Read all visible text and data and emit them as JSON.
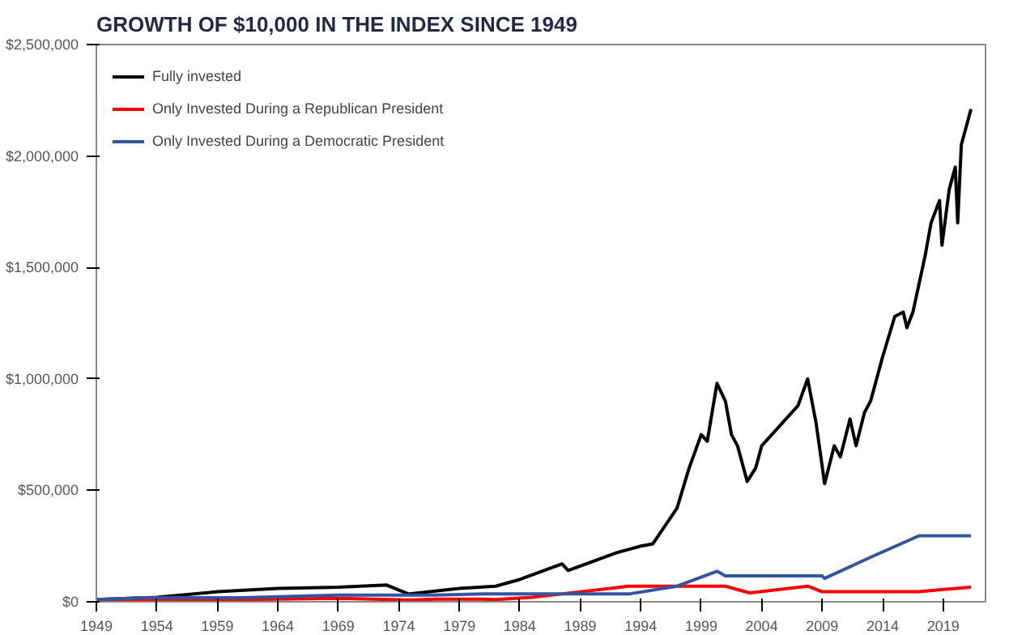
{
  "chart_data": {
    "type": "line",
    "title": "GROWTH OF $10,000 IN THE INDEX SINCE 1949",
    "xlim": [
      1949,
      2022.5
    ],
    "xticks": [
      1949,
      1954,
      1959,
      1964,
      1969,
      1974,
      1979,
      1984,
      1989,
      1994,
      1999,
      2004,
      2009,
      2014,
      2019
    ],
    "ylim": [
      0,
      2500000
    ],
    "yticks": [
      {
        "value": 0,
        "label": "$0"
      },
      {
        "value": 500000,
        "label": "$500,000"
      },
      {
        "value": 1000000,
        "label": "$1,000,000"
      },
      {
        "value": 1500000,
        "label": "$1,500,000"
      },
      {
        "value": 2000000,
        "label": "$2,000,000"
      },
      {
        "value": 2500000,
        "label": "$2,500,000"
      }
    ],
    "grid": false,
    "legend": "top left",
    "line_style": "solid",
    "marker": "none",
    "series": [
      {
        "name": "Fully invested",
        "color": "#000000",
        "x": [
          1949,
          1954,
          1959,
          1964,
          1969,
          1973,
          1974.8,
          1979,
          1982,
          1984,
          1987.5,
          1988,
          1990,
          1992,
          1994,
          1995,
          1997,
          1998,
          1999,
          1999.5,
          2000.3,
          2001,
          2001.5,
          2002,
          2002.8,
          2003.5,
          2004,
          2005,
          2006,
          2007,
          2007.8,
          2008.5,
          2009.2,
          2010,
          2010.5,
          2011.3,
          2011.8,
          2012.5,
          2013,
          2014,
          2015,
          2015.7,
          2016,
          2016.5,
          2017.5,
          2018,
          2018.7,
          2018.9,
          2019.5,
          2020,
          2020.2,
          2020.5,
          2021.3
        ],
        "values": [
          10000,
          20000,
          45000,
          60000,
          65000,
          75000,
          35000,
          60000,
          70000,
          100000,
          170000,
          140000,
          180000,
          220000,
          250000,
          260000,
          420000,
          600000,
          750000,
          720000,
          980000,
          900000,
          750000,
          700000,
          540000,
          600000,
          700000,
          760000,
          820000,
          880000,
          1000000,
          800000,
          530000,
          700000,
          650000,
          820000,
          700000,
          850000,
          900000,
          1100000,
          1280000,
          1300000,
          1230000,
          1300000,
          1550000,
          1700000,
          1800000,
          1600000,
          1850000,
          1950000,
          1700000,
          2050000,
          2210000
        ]
      },
      {
        "name": "Only Invested During a Republican President",
        "color": "#ff0000",
        "x": [
          1949,
          1953,
          1961,
          1969,
          1974.8,
          1977,
          1981,
          1982,
          1985,
          1989,
          1993,
          2001,
          2003,
          2007.8,
          2009,
          2017,
          2019,
          2021.3
        ],
        "values": [
          10000,
          10000,
          10000,
          15000,
          8000,
          12000,
          12000,
          10000,
          20000,
          45000,
          70000,
          70000,
          40000,
          70000,
          45000,
          45000,
          55000,
          65000
        ]
      },
      {
        "name": "Only Invested During a Democratic President",
        "color": "#3355a0",
        "x": [
          1949,
          1953,
          1961,
          1969,
          1977,
          1981,
          1993,
          1997,
          2000.3,
          2001,
          2009,
          2009.2,
          2013,
          2017,
          2021.3
        ],
        "values": [
          10000,
          18000,
          18000,
          30000,
          30000,
          35000,
          35000,
          70000,
          137000,
          116000,
          116000,
          105000,
          200000,
          296000,
          296000
        ]
      }
    ]
  }
}
